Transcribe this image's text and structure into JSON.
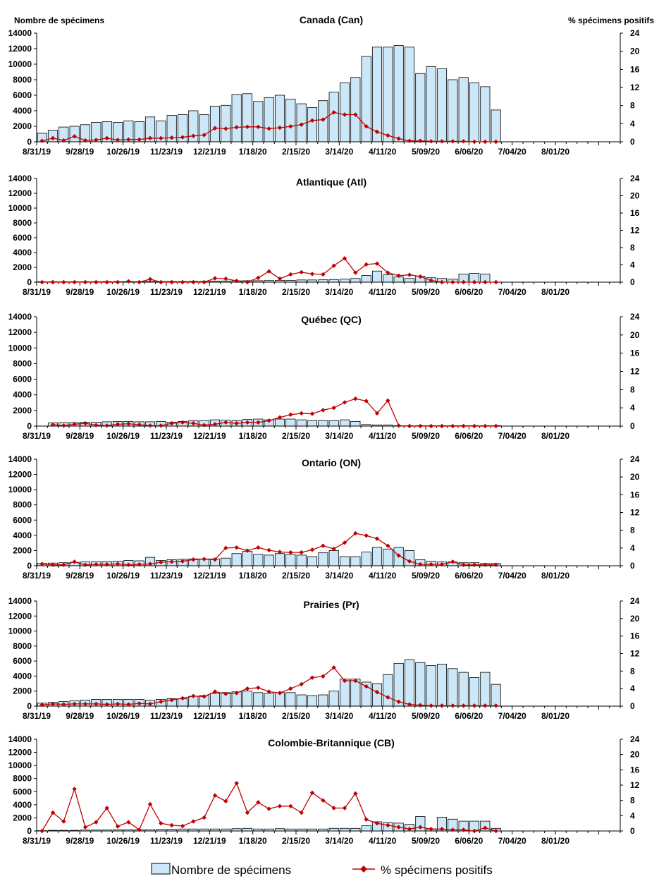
{
  "axis_titles": {
    "left": "Nombre de spécimens",
    "right": "% spécimens positifs"
  },
  "legend": {
    "bars": "Nombre de spécimens",
    "line": "% spécimens positifs"
  },
  "colors": {
    "bar_fill": "#cce8f8",
    "bar_stroke": "#000000",
    "line": "#c00000"
  },
  "chart_data": [
    {
      "type": "bar",
      "title": "Canada (Can)",
      "x_tick_labels": [
        "8/31/19",
        "9/28/19",
        "10/26/19",
        "11/23/19",
        "12/21/19",
        "1/18/20",
        "2/15/20",
        "3/14/20",
        "4/11/20",
        "5/09/20",
        "6/06/20",
        "7/04/20",
        "8/01/20"
      ],
      "y_left_ticks": [
        0,
        2000,
        4000,
        6000,
        8000,
        10000,
        12000,
        14000
      ],
      "y_right_ticks": [
        0,
        4,
        8,
        12,
        16,
        20,
        24
      ],
      "ylim_left": [
        0,
        14000
      ],
      "ylim_right": [
        0,
        24
      ],
      "series": [
        {
          "name": "Nombre de spécimens",
          "type": "bar",
          "values": [
            1100,
            1500,
            1900,
            2000,
            2200,
            2500,
            2600,
            2500,
            2700,
            2600,
            3200,
            2700,
            3400,
            3500,
            4000,
            3500,
            4600,
            4700,
            6100,
            6200,
            5200,
            5700,
            6000,
            5500,
            4900,
            4400,
            5300,
            6400,
            7600,
            8300,
            11000,
            12200,
            12200,
            12400,
            12200,
            8800,
            9700,
            9400,
            8000,
            8300,
            7600,
            7100,
            4100
          ]
        },
        {
          "name": "% spécimens positifs",
          "type": "line",
          "values": [
            0.2,
            0.8,
            0.3,
            1.2,
            0.3,
            0.4,
            0.8,
            0.4,
            0.5,
            0.5,
            0.8,
            0.8,
            0.9,
            1.0,
            1.3,
            1.5,
            3.0,
            2.9,
            3.2,
            3.3,
            3.3,
            2.9,
            3.1,
            3.4,
            3.8,
            4.7,
            4.9,
            6.5,
            6.0,
            6.0,
            3.4,
            2.2,
            1.4,
            0.7,
            0.2,
            0.2,
            0.1,
            0.1,
            0.1,
            0.1,
            0.0,
            0.0,
            0.0
          ]
        }
      ]
    },
    {
      "type": "bar",
      "title": "Atlantique (Atl)",
      "x_tick_labels": [
        "8/31/19",
        "9/28/19",
        "10/26/19",
        "11/23/19",
        "12/21/19",
        "1/18/20",
        "2/15/20",
        "3/14/20",
        "4/11/20",
        "5/09/20",
        "6/06/20",
        "7/04/20",
        "8/01/20"
      ],
      "y_left_ticks": [
        0,
        2000,
        4000,
        6000,
        8000,
        10000,
        12000,
        14000
      ],
      "y_right_ticks": [
        0,
        4,
        8,
        12,
        16,
        20,
        24
      ],
      "ylim_left": [
        0,
        14000
      ],
      "ylim_right": [
        0,
        24
      ],
      "series": [
        {
          "name": "Nombre de spécimens",
          "type": "bar",
          "values": [
            50,
            50,
            50,
            60,
            60,
            70,
            80,
            80,
            80,
            80,
            90,
            90,
            100,
            100,
            120,
            120,
            150,
            160,
            180,
            200,
            200,
            220,
            250,
            250,
            300,
            300,
            320,
            350,
            400,
            500,
            900,
            1500,
            1000,
            700,
            500,
            800,
            600,
            500,
            400,
            1100,
            1200,
            1100,
            0
          ]
        },
        {
          "name": "% spécimens positifs",
          "type": "line",
          "values": [
            0.0,
            0.0,
            0.0,
            0.0,
            0.0,
            0.0,
            0.0,
            0.0,
            0.2,
            0.0,
            0.7,
            0.0,
            0.0,
            0.0,
            0.0,
            0.0,
            0.9,
            0.8,
            0.3,
            0.0,
            1.0,
            2.5,
            0.8,
            1.8,
            2.3,
            1.9,
            1.8,
            3.8,
            5.5,
            2.2,
            4.1,
            4.3,
            2.2,
            1.5,
            1.7,
            1.3,
            0.4,
            0.0,
            0.0,
            0.0,
            0.0,
            0.0,
            0.0
          ]
        }
      ]
    },
    {
      "type": "bar",
      "title": "Québec (QC)",
      "x_tick_labels": [
        "8/31/19",
        "9/28/19",
        "10/26/19",
        "11/23/19",
        "12/21/19",
        "1/18/20",
        "2/15/20",
        "3/14/20",
        "4/11/20",
        "5/09/20",
        "6/06/20",
        "7/04/20",
        "8/01/20"
      ],
      "y_left_ticks": [
        0,
        2000,
        4000,
        6000,
        8000,
        10000,
        12000,
        14000
      ],
      "y_right_ticks": [
        0,
        4,
        8,
        12,
        16,
        20,
        24
      ],
      "ylim_left": [
        0,
        14000
      ],
      "ylim_right": [
        0,
        24
      ],
      "series": [
        {
          "name": "Nombre de spécimens",
          "type": "bar",
          "values": [
            0,
            400,
            450,
            450,
            500,
            500,
            550,
            600,
            600,
            550,
            550,
            600,
            500,
            600,
            700,
            700,
            800,
            750,
            700,
            850,
            900,
            800,
            900,
            900,
            800,
            700,
            700,
            700,
            800,
            600,
            200,
            150,
            150,
            50,
            50,
            50,
            50,
            50,
            50,
            50,
            50,
            50,
            50
          ]
        },
        {
          "name": "% spécimens positifs",
          "type": "line",
          "values": [
            null,
            0.3,
            0.1,
            0.4,
            0.6,
            0.2,
            0.1,
            0.4,
            0.5,
            0.3,
            0.1,
            0.1,
            0.6,
            0.8,
            0.6,
            0.2,
            0.4,
            0.8,
            0.6,
            0.8,
            0.8,
            1.2,
            1.9,
            2.5,
            2.8,
            2.7,
            3.5,
            4.0,
            5.2,
            6.0,
            5.5,
            2.8,
            5.6,
            0.1,
            0.0,
            0.0,
            0.0,
            0.0,
            0.0,
            0.0,
            0.0,
            0.0,
            0.0
          ]
        }
      ]
    },
    {
      "type": "bar",
      "title": "Ontario (ON)",
      "x_tick_labels": [
        "8/31/19",
        "9/28/19",
        "10/26/19",
        "11/23/19",
        "12/21/19",
        "1/18/20",
        "2/15/20",
        "3/14/20",
        "4/11/20",
        "5/09/20",
        "6/06/20",
        "7/04/20",
        "8/01/20"
      ],
      "y_left_ticks": [
        0,
        2000,
        4000,
        6000,
        8000,
        10000,
        12000,
        14000
      ],
      "y_right_ticks": [
        0,
        4,
        8,
        12,
        16,
        20,
        24
      ],
      "ylim_left": [
        0,
        14000
      ],
      "ylim_right": [
        0,
        24
      ],
      "series": [
        {
          "name": "Nombre de spécimens",
          "type": "bar",
          "values": [
            300,
            350,
            400,
            450,
            500,
            550,
            550,
            600,
            700,
            650,
            1100,
            700,
            800,
            850,
            900,
            900,
            900,
            1000,
            1600,
            1900,
            1500,
            1400,
            1600,
            1500,
            1400,
            1200,
            1700,
            2000,
            1200,
            1200,
            1800,
            2400,
            2200,
            2400,
            2000,
            800,
            600,
            500,
            500,
            400,
            400,
            300,
            300
          ]
        },
        {
          "name": "% spécimens positifs",
          "type": "line",
          "values": [
            0.4,
            0.2,
            0.2,
            0.9,
            0.2,
            0.3,
            0.3,
            0.4,
            0.2,
            0.3,
            0.4,
            0.8,
            0.9,
            1.0,
            1.4,
            1.5,
            1.4,
            4.0,
            4.1,
            3.4,
            4.1,
            3.5,
            3.1,
            3.0,
            3.0,
            3.6,
            4.5,
            3.8,
            5.2,
            7.3,
            6.8,
            6.1,
            4.5,
            2.3,
            1.0,
            0.3,
            0.3,
            0.3,
            0.9,
            0.2,
            0.2,
            0.2,
            0.2
          ]
        }
      ]
    },
    {
      "type": "bar",
      "title": "Prairies (Pr)",
      "x_tick_labels": [
        "8/31/19",
        "9/28/19",
        "10/26/19",
        "11/23/19",
        "12/21/19",
        "1/18/20",
        "2/15/20",
        "3/14/20",
        "4/11/20",
        "5/09/20",
        "6/06/20",
        "7/04/20",
        "8/01/20"
      ],
      "y_left_ticks": [
        0,
        2000,
        4000,
        6000,
        8000,
        10000,
        12000,
        14000
      ],
      "y_right_ticks": [
        0,
        4,
        8,
        12,
        16,
        20,
        24
      ],
      "ylim_left": [
        0,
        14000
      ],
      "ylim_right": [
        0,
        24
      ],
      "series": [
        {
          "name": "Nombre de spécimens",
          "type": "bar",
          "values": [
            400,
            500,
            600,
            700,
            800,
            900,
            900,
            900,
            900,
            900,
            800,
            900,
            1000,
            1000,
            1300,
            1400,
            1700,
            1800,
            1900,
            2000,
            1800,
            1700,
            1800,
            1800,
            1500,
            1400,
            1500,
            2000,
            3600,
            3600,
            3200,
            3000,
            4200,
            5700,
            6200,
            5800,
            5400,
            5600,
            5000,
            4500,
            3800,
            4500,
            2900
          ]
        },
        {
          "name": "% spécimens positifs",
          "type": "line",
          "values": [
            0.3,
            0.5,
            0.4,
            0.5,
            0.5,
            0.5,
            0.4,
            0.5,
            0.4,
            0.6,
            0.5,
            1.0,
            1.4,
            1.8,
            2.3,
            2.2,
            3.3,
            2.8,
            3.0,
            4.0,
            4.2,
            3.3,
            3.0,
            4.0,
            5.0,
            6.5,
            6.8,
            8.8,
            5.8,
            5.8,
            4.5,
            3.2,
            2.0,
            1.0,
            0.4,
            0.2,
            0.1,
            0.1,
            0.1,
            0.1,
            0.1,
            0.1,
            0.1
          ]
        }
      ]
    },
    {
      "type": "bar",
      "title": "Colombie-Britannique (CB)",
      "x_tick_labels": [
        "8/31/19",
        "9/28/19",
        "10/26/19",
        "11/23/19",
        "12/21/19",
        "1/18/20",
        "2/15/20",
        "3/14/20",
        "4/11/20",
        "5/09/20",
        "6/06/20",
        "7/04/20",
        "8/01/20"
      ],
      "y_left_ticks": [
        0,
        2000,
        4000,
        6000,
        8000,
        10000,
        12000,
        14000
      ],
      "y_right_ticks": [
        0,
        4,
        8,
        12,
        16,
        20,
        24
      ],
      "ylim_left": [
        0,
        14000
      ],
      "ylim_right": [
        0,
        24
      ],
      "series": [
        {
          "name": "Nombre de spécimens",
          "type": "bar",
          "values": [
            50,
            100,
            100,
            100,
            150,
            150,
            150,
            200,
            200,
            200,
            200,
            250,
            250,
            300,
            300,
            300,
            300,
            300,
            350,
            400,
            300,
            300,
            350,
            300,
            300,
            300,
            300,
            400,
            400,
            400,
            800,
            1400,
            1300,
            1200,
            1000,
            2200,
            300,
            2100,
            1800,
            1500,
            1500,
            1500,
            400
          ]
        },
        {
          "name": "% spécimens positifs",
          "type": "line",
          "values": [
            0.0,
            4.8,
            2.5,
            11.0,
            1.0,
            2.3,
            6.0,
            1.2,
            2.3,
            0.3,
            7.0,
            2.0,
            1.5,
            1.3,
            2.5,
            3.5,
            9.3,
            7.8,
            12.5,
            4.8,
            7.5,
            5.8,
            6.5,
            6.5,
            4.8,
            10.0,
            8.0,
            6.0,
            6.0,
            9.8,
            3.0,
            2.0,
            1.5,
            1.0,
            0.5,
            1.0,
            0.5,
            0.5,
            0.3,
            0.3,
            0.0,
            0.8,
            0.0
          ]
        }
      ]
    }
  ]
}
